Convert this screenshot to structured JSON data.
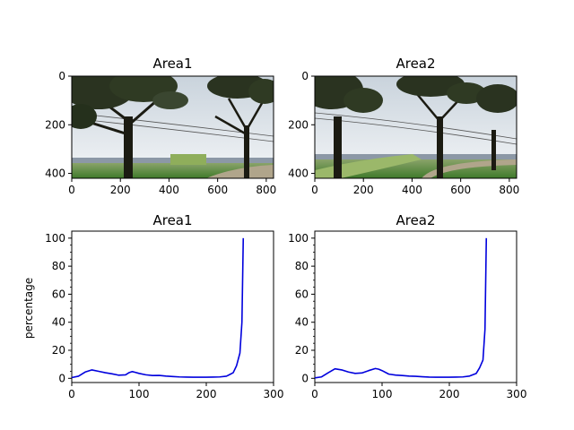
{
  "charts": [
    {
      "panel": "top-left",
      "type": "image",
      "title": "Area1",
      "image_width": 830,
      "image_height": 420,
      "x_ticks": [
        "0",
        "200",
        "400",
        "600",
        "800"
      ],
      "y_ticks": [
        "0",
        "200",
        "400"
      ],
      "image_desc": "roadside field scene with trees (near x≈240 and x≈720), power lines, distant buildings and green grass"
    },
    {
      "panel": "top-right",
      "type": "image",
      "title": "Area2",
      "image_width": 830,
      "image_height": 420,
      "x_ticks": [
        "0",
        "200",
        "400",
        "600",
        "800"
      ],
      "y_ticks": [
        "0",
        "200",
        "400"
      ],
      "image_desc": "similar roadside field scene shifted left, trees near x≈90, x≈520 and x≈740, rice field in foreground"
    }
  ],
  "chart_data": [
    {
      "panel": "bottom-left",
      "type": "line",
      "title": "Area1",
      "xlabel": "",
      "ylabel": "percentage",
      "xlim": [
        0,
        300
      ],
      "ylim": [
        -3,
        105
      ],
      "x_ticks": [
        "0",
        "100",
        "200",
        "300"
      ],
      "y_ticks": [
        "0",
        "20",
        "40",
        "60",
        "80",
        "100"
      ],
      "grid": false,
      "line_color": "#0000dd",
      "series": [
        {
          "x": [
            0,
            10,
            20,
            30,
            40,
            50,
            60,
            70,
            80,
            85,
            90,
            95,
            100,
            110,
            120,
            130,
            140,
            150,
            160,
            170,
            180,
            190,
            200,
            210,
            220,
            230,
            240,
            245,
            250,
            253,
            255
          ],
          "values": [
            0.5,
            1.5,
            4.5,
            6.0,
            5.0,
            4.0,
            3.2,
            2.2,
            2.5,
            4.0,
            4.8,
            4.2,
            3.5,
            2.5,
            2.0,
            2.1,
            1.6,
            1.3,
            1.0,
            0.9,
            0.8,
            0.8,
            0.8,
            0.9,
            1.0,
            1.5,
            4.0,
            9.0,
            18.0,
            40.0,
            100.0
          ]
        }
      ]
    },
    {
      "panel": "bottom-right",
      "type": "line",
      "title": "Area2",
      "xlabel": "",
      "ylabel": "",
      "xlim": [
        0,
        300
      ],
      "ylim": [
        -3,
        105
      ],
      "x_ticks": [
        "0",
        "100",
        "200",
        "300"
      ],
      "y_ticks": [
        "0",
        "20",
        "40",
        "60",
        "80",
        "100"
      ],
      "grid": false,
      "line_color": "#0000dd",
      "series": [
        {
          "x": [
            0,
            10,
            20,
            30,
            40,
            50,
            60,
            70,
            80,
            90,
            95,
            100,
            110,
            120,
            130,
            140,
            150,
            160,
            170,
            180,
            190,
            200,
            210,
            220,
            230,
            240,
            245,
            250,
            253,
            255
          ],
          "values": [
            0.3,
            1.0,
            4.0,
            6.8,
            6.0,
            4.5,
            3.5,
            3.8,
            5.5,
            7.0,
            6.5,
            5.5,
            3.0,
            2.3,
            2.0,
            1.6,
            1.4,
            1.1,
            0.9,
            0.8,
            0.8,
            0.8,
            0.9,
            1.0,
            1.6,
            3.5,
            7.5,
            13.0,
            35.0,
            100.0
          ]
        }
      ]
    }
  ]
}
